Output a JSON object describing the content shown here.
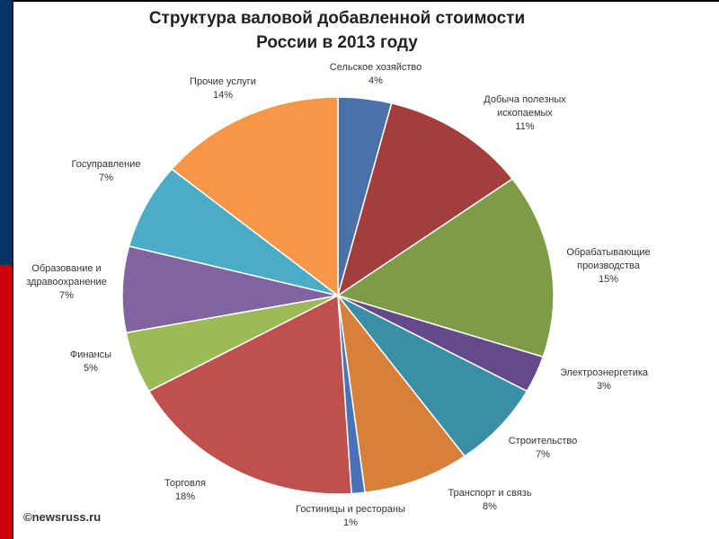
{
  "chart_data": {
    "type": "pie",
    "title_line1": "Структура валовой добавленной стоимости",
    "title_line2": "России в 2013 году",
    "slices": [
      {
        "label": "Сельское хозяйство",
        "value": 4,
        "color": "#4A72A8"
      },
      {
        "label": "Добыча полезных ископаемых",
        "value": 11,
        "color": "#A33E3C"
      },
      {
        "label": "Обрабатывающие производства",
        "value": 15,
        "color": "#7E9C45"
      },
      {
        "label": "Электроэнергетика",
        "value": 3,
        "color": "#644A8A"
      },
      {
        "label": "Строительство",
        "value": 7,
        "color": "#3A8EA6"
      },
      {
        "label": "Транспорт и связь",
        "value": 8,
        "color": "#D6803A"
      },
      {
        "label": "Гостиницы и рестораны",
        "value": 1,
        "color": "#4A72B8"
      },
      {
        "label": "Торговля",
        "value": 18,
        "color": "#C0504D"
      },
      {
        "label": "Финансы",
        "value": 5,
        "color": "#9BBB59"
      },
      {
        "label": "Образование и здравоохранение",
        "value": 7,
        "color": "#8064A2"
      },
      {
        "label": "Госуправление",
        "value": 7,
        "color": "#4BACC6"
      },
      {
        "label": "Прочие услуги",
        "value": 14,
        "color": "#F79646"
      }
    ]
  },
  "labels": [
    {
      "lines": [
        "Сельское хозяйство",
        "4%"
      ]
    },
    {
      "lines": [
        "Добыча полезных",
        "ископаемых",
        "11%"
      ]
    },
    {
      "lines": [
        "Обрабатывающие",
        "производства",
        "15%"
      ]
    },
    {
      "lines": [
        "Электроэнергетика",
        "3%"
      ]
    },
    {
      "lines": [
        "Строительство",
        "7%"
      ]
    },
    {
      "lines": [
        "Транспорт и связь",
        "8%"
      ]
    },
    {
      "lines": [
        "Гостиницы и рестораны",
        "1%"
      ]
    },
    {
      "lines": [
        "Торговля",
        "18%"
      ]
    },
    {
      "lines": [
        "Финансы",
        "5%"
      ]
    },
    {
      "lines": [
        "Образование и",
        "здравоохранение",
        "7%"
      ]
    },
    {
      "lines": [
        "Госуправление",
        "7%"
      ]
    },
    {
      "lines": [
        "Прочие услуги",
        "14%"
      ]
    }
  ],
  "watermark": "©newsruss.ru"
}
